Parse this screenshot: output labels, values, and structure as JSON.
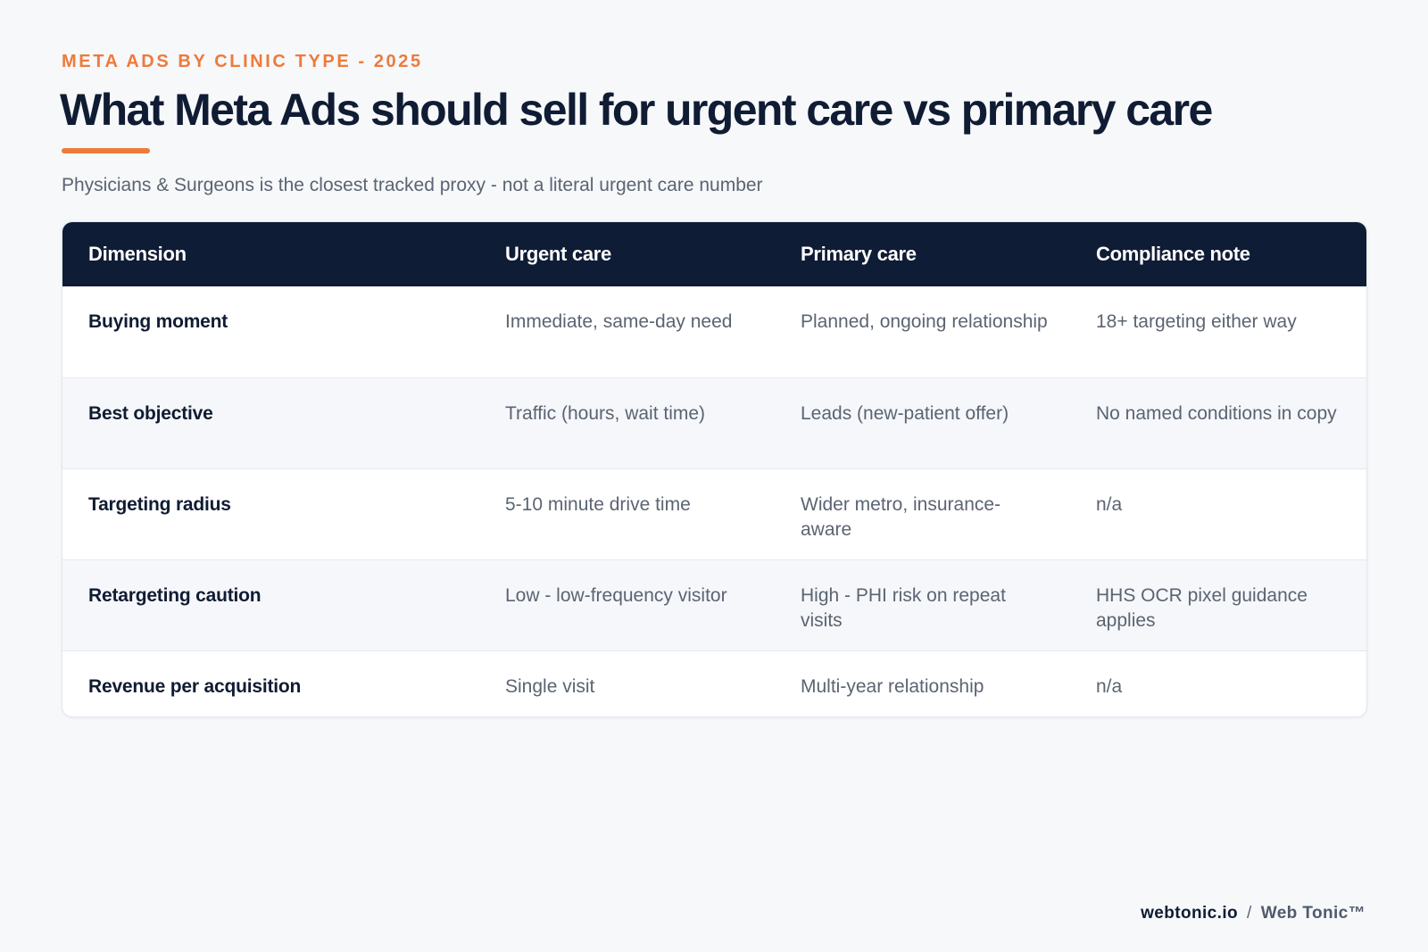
{
  "header": {
    "eyebrow": "META ADS BY CLINIC TYPE - 2025",
    "title": "What Meta Ads should sell for urgent care vs primary care",
    "subtitle": "Physicians & Surgeons is the closest tracked proxy - not a literal urgent care number"
  },
  "table": {
    "columns": [
      "Dimension",
      "Urgent care",
      "Primary care",
      "Compliance note"
    ],
    "rows": [
      [
        "Buying moment",
        "Immediate, same-day need",
        "Planned, ongoing relationship",
        "18+ targeting either way"
      ],
      [
        "Best objective",
        "Traffic (hours, wait time)",
        "Leads (new-patient offer)",
        "No named conditions in copy"
      ],
      [
        "Targeting radius",
        "5-10 minute drive time",
        "Wider metro, insurance-aware",
        "n/a"
      ],
      [
        "Retargeting caution",
        "Low - low-frequency visitor",
        "High - PHI risk on repeat visits",
        "HHS OCR pixel guidance applies"
      ],
      [
        "Revenue per acquisition",
        "Single visit",
        "Multi-year relationship",
        "n/a"
      ]
    ]
  },
  "footer": {
    "domain": "webtonic.io",
    "separator": "/",
    "brand": "Web Tonic™"
  },
  "colors": {
    "accent": "#ee7a3b",
    "header_bg": "#0f1c35",
    "page_bg": "#f6f8fa"
  }
}
